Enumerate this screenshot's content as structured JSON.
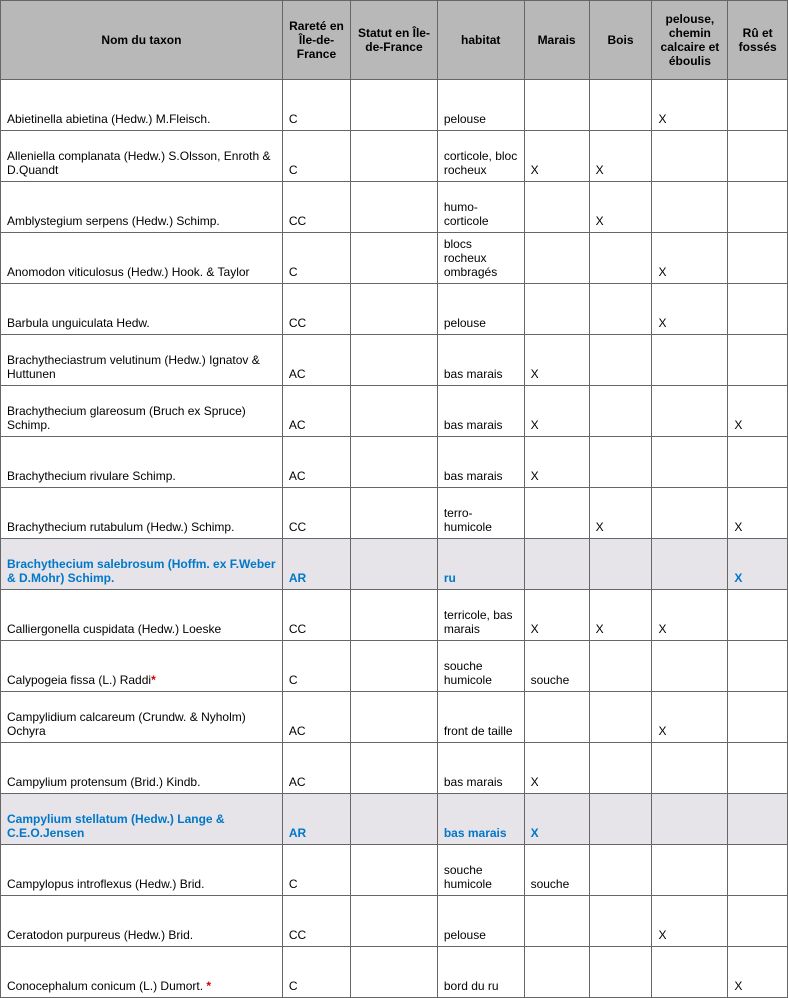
{
  "columns": [
    "Nom du taxon",
    "Rareté en Île-de-France",
    "Statut en Île-de-France",
    "habitat",
    "Marais",
    "Bois",
    "pelouse, chemin calcaire et éboulis",
    "Rû et fossés"
  ],
  "rows": [
    {
      "name": "Abietinella abietina (Hedw.) M.Fleisch.",
      "aster": "",
      "rarete": "C",
      "statut": "",
      "habitat": "pelouse",
      "marais": "",
      "bois": "",
      "pelouse": "X",
      "ru": "",
      "hl": false
    },
    {
      "name": "Alleniella complanata (Hedw.) S.Olsson, Enroth & D.Quandt",
      "aster": "",
      "rarete": "C",
      "statut": "",
      "habitat": "corticole, bloc rocheux",
      "marais": "X",
      "bois": "X",
      "pelouse": "",
      "ru": "",
      "hl": false
    },
    {
      "name": "Amblystegium serpens (Hedw.) Schimp.",
      "aster": "",
      "rarete": "CC",
      "statut": "",
      "habitat": "humo-corticole",
      "marais": "",
      "bois": "X",
      "pelouse": "",
      "ru": "",
      "hl": false
    },
    {
      "name": "Anomodon viticulosus (Hedw.) Hook. & Taylor",
      "aster": "",
      "rarete": "C",
      "statut": "",
      "habitat": "blocs rocheux ombragés",
      "marais": "",
      "bois": "",
      "pelouse": "X",
      "ru": "",
      "hl": false
    },
    {
      "name": "Barbula unguiculata Hedw.",
      "aster": "",
      "rarete": "CC",
      "statut": "",
      "habitat": "pelouse",
      "marais": "",
      "bois": "",
      "pelouse": "X",
      "ru": "",
      "hl": false
    },
    {
      "name": "Brachytheciastrum velutinum (Hedw.) Ignatov & Huttunen",
      "aster": "",
      "rarete": "AC",
      "statut": "",
      "habitat": "bas marais",
      "marais": "X",
      "bois": "",
      "pelouse": "",
      "ru": "",
      "hl": false
    },
    {
      "name": "Brachythecium glareosum (Bruch ex Spruce) Schimp.",
      "aster": "",
      "rarete": "AC",
      "statut": "",
      "habitat": "bas marais",
      "marais": "X",
      "bois": "",
      "pelouse": "",
      "ru": "X",
      "hl": false
    },
    {
      "name": "Brachythecium rivulare Schimp.",
      "aster": "",
      "rarete": "AC",
      "statut": "",
      "habitat": "bas marais",
      "marais": "X",
      "bois": "",
      "pelouse": "",
      "ru": "",
      "hl": false
    },
    {
      "name": "Brachythecium rutabulum (Hedw.) Schimp.",
      "aster": "",
      "rarete": "CC",
      "statut": "",
      "habitat": "terro-humicole",
      "marais": "",
      "bois": "X",
      "pelouse": "",
      "ru": "X",
      "hl": false
    },
    {
      "name": "Brachythecium salebrosum (Hoffm. ex F.Weber & D.Mohr) Schimp.",
      "aster": "",
      "rarete": "AR",
      "statut": "",
      "habitat": "ru",
      "marais": "",
      "bois": "",
      "pelouse": "",
      "ru": "X",
      "hl": true
    },
    {
      "name": "Calliergonella cuspidata (Hedw.) Loeske",
      "aster": "",
      "rarete": "CC",
      "statut": "",
      "habitat": "terricole, bas marais",
      "marais": "X",
      "bois": "X",
      "pelouse": "X",
      "ru": "",
      "hl": false
    },
    {
      "name": "Calypogeia fissa (L.) Raddi",
      "aster": "*",
      "rarete": "C",
      "statut": "",
      "habitat": "souche humicole",
      "marais": "souche",
      "bois": "",
      "pelouse": "",
      "ru": "",
      "hl": false
    },
    {
      "name": "Campylidium calcareum (Crundw. & Nyholm) Ochyra",
      "aster": "",
      "rarete": "AC",
      "statut": "",
      "habitat": "front de taille",
      "marais": "",
      "bois": "",
      "pelouse": "X",
      "ru": "",
      "hl": false
    },
    {
      "name": "Campylium protensum (Brid.) Kindb.",
      "aster": "",
      "rarete": "AC",
      "statut": "",
      "habitat": "bas marais",
      "marais": "X",
      "bois": "",
      "pelouse": "",
      "ru": "",
      "hl": false
    },
    {
      "name": "Campylium stellatum (Hedw.) Lange & C.E.O.Jensen",
      "aster": "",
      "rarete": "AR",
      "statut": "",
      "habitat": "bas marais",
      "marais": "X",
      "bois": "",
      "pelouse": "",
      "ru": "",
      "hl": true
    },
    {
      "name": "Campylopus introflexus (Hedw.) Brid.",
      "aster": "",
      "rarete": "C",
      "statut": "",
      "habitat": "souche humicole",
      "marais": "souche",
      "bois": "",
      "pelouse": "",
      "ru": "",
      "hl": false
    },
    {
      "name": "Ceratodon purpureus (Hedw.) Brid.",
      "aster": "",
      "rarete": "CC",
      "statut": "",
      "habitat": "pelouse",
      "marais": "",
      "bois": "",
      "pelouse": "X",
      "ru": "",
      "hl": false
    },
    {
      "name": "Conocephalum conicum (L.) Dumort. ",
      "aster": "*",
      "rarete": "C",
      "statut": "",
      "habitat": "bord du ru",
      "marais": "",
      "bois": "",
      "pelouse": "",
      "ru": "X",
      "hl": false
    }
  ]
}
